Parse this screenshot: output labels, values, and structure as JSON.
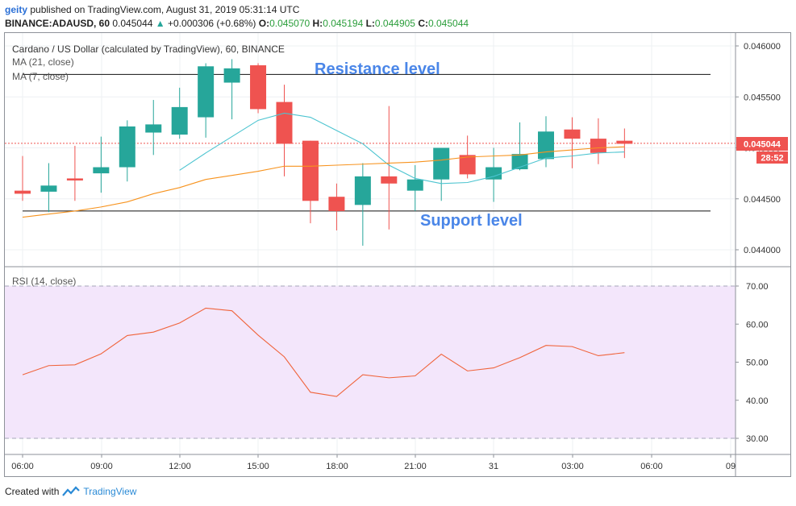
{
  "header": {
    "user": "geity",
    "published_text": "published on TradingView.com, August 31, 2019 05:31:14 UTC",
    "symbol": "BINANCE:ADAUSD, 60",
    "last_price": "0.045044",
    "change": "+0.000306 (+0.68%)",
    "o_label": "O:",
    "o_value": "0.045070",
    "h_label": "H:",
    "h_value": "0.045194",
    "l_label": "L:",
    "l_value": "0.044905",
    "c_label": "C:",
    "c_value": "0.045044"
  },
  "legend": {
    "title": "Cardano / US Dollar (calculated by TradingView), 60, BINANCE",
    "ma21": "MA (21, close)",
    "ma7": "MA (7, close)",
    "rsi": "RSI (14, close)"
  },
  "annotations": {
    "resistance": "Resistance level",
    "support": "Support level"
  },
  "price_tag": "0.045044",
  "countdown": "28:52",
  "footer": {
    "created": "Created with",
    "brand": "TradingView"
  },
  "colors": {
    "up": "#26a69a",
    "down": "#ef5350",
    "ma7": "#4cc4d0",
    "ma21": "#f7931e",
    "rsi": "#f0643c",
    "rsi_band": "#f3e6fb",
    "annotation": "#4a86e8"
  },
  "chart_data": [
    {
      "type": "candlestick",
      "title": "Cardano / US Dollar (calculated by TradingView), 60, BINANCE",
      "x_tick_labels": [
        "06:00",
        "09:00",
        "12:00",
        "15:00",
        "18:00",
        "21:00",
        "31",
        "03:00",
        "06:00",
        "09"
      ],
      "y_tick_labels": [
        "0.046000",
        "0.045500",
        "0.045000",
        "0.044500",
        "0.044000"
      ],
      "ylim": [
        0.04385,
        0.04608
      ],
      "candles": [
        {
          "o": 0.04458,
          "h": 0.04492,
          "l": 0.04448,
          "c": 0.04455
        },
        {
          "o": 0.04457,
          "h": 0.04485,
          "l": 0.04437,
          "c": 0.04463
        },
        {
          "o": 0.0447,
          "h": 0.04502,
          "l": 0.04448,
          "c": 0.04468
        },
        {
          "o": 0.04475,
          "h": 0.04511,
          "l": 0.04456,
          "c": 0.04481
        },
        {
          "o": 0.04481,
          "h": 0.04527,
          "l": 0.04467,
          "c": 0.04521
        },
        {
          "o": 0.04515,
          "h": 0.04547,
          "l": 0.04493,
          "c": 0.04523
        },
        {
          "o": 0.04513,
          "h": 0.04559,
          "l": 0.04509,
          "c": 0.0454
        },
        {
          "o": 0.0453,
          "h": 0.04583,
          "l": 0.0451,
          "c": 0.0458
        },
        {
          "o": 0.04564,
          "h": 0.04587,
          "l": 0.04528,
          "c": 0.04578
        },
        {
          "o": 0.04581,
          "h": 0.04583,
          "l": 0.04534,
          "c": 0.04538
        },
        {
          "o": 0.04545,
          "h": 0.04562,
          "l": 0.04472,
          "c": 0.04504
        },
        {
          "o": 0.04507,
          "h": 0.04507,
          "l": 0.04426,
          "c": 0.04448
        },
        {
          "o": 0.04452,
          "h": 0.04465,
          "l": 0.04419,
          "c": 0.04438
        },
        {
          "o": 0.04444,
          "h": 0.04485,
          "l": 0.04404,
          "c": 0.04472
        },
        {
          "o": 0.04472,
          "h": 0.04541,
          "l": 0.0442,
          "c": 0.04465
        },
        {
          "o": 0.04458,
          "h": 0.04483,
          "l": 0.04438,
          "c": 0.04469
        },
        {
          "o": 0.04469,
          "h": 0.045,
          "l": 0.04448,
          "c": 0.045
        },
        {
          "o": 0.04493,
          "h": 0.04512,
          "l": 0.0447,
          "c": 0.04474
        },
        {
          "o": 0.04469,
          "h": 0.045,
          "l": 0.04447,
          "c": 0.04481
        },
        {
          "o": 0.04479,
          "h": 0.04525,
          "l": 0.04478,
          "c": 0.04494
        },
        {
          "o": 0.04489,
          "h": 0.04531,
          "l": 0.04481,
          "c": 0.04516
        },
        {
          "o": 0.04518,
          "h": 0.0453,
          "l": 0.0448,
          "c": 0.04509
        },
        {
          "o": 0.04509,
          "h": 0.04529,
          "l": 0.04484,
          "c": 0.04495
        },
        {
          "o": 0.04507,
          "h": 0.04519,
          "l": 0.0449,
          "c": 0.04504
        }
      ],
      "series": [
        {
          "name": "MA (7, close)",
          "values": [
            null,
            null,
            null,
            null,
            null,
            null,
            0.04478,
            0.04495,
            0.04511,
            0.04527,
            0.04534,
            0.0453,
            0.04517,
            0.04504,
            0.04483,
            0.0447,
            0.04465,
            0.04466,
            0.04472,
            0.04481,
            0.0449,
            0.04492,
            0.04495,
            0.04496
          ]
        },
        {
          "name": "MA (21, close)",
          "values": [
            0.04432,
            0.04435,
            0.04438,
            0.04442,
            0.04447,
            0.04455,
            0.04461,
            0.04469,
            0.04473,
            0.04477,
            0.04482,
            0.04482,
            0.04483,
            0.04484,
            0.04485,
            0.04486,
            0.04488,
            0.04491,
            0.04492,
            0.04493,
            0.04496,
            0.04498,
            0.045,
            0.04501
          ]
        }
      ],
      "lines": [
        {
          "name": "Resistance level",
          "value": 0.04572
        },
        {
          "name": "Support level",
          "value": 0.04438
        }
      ],
      "last_price": 0.045044
    },
    {
      "type": "line",
      "title": "RSI (14, close)",
      "y_tick_labels": [
        "70.00",
        "60.00",
        "50.00",
        "40.00",
        "30.00"
      ],
      "ylim": [
        27,
        73
      ],
      "band": [
        30,
        70
      ],
      "series": [
        {
          "name": "RSI (14, close)",
          "values": [
            46.7,
            49.1,
            49.3,
            52.2,
            57.0,
            57.9,
            60.3,
            64.2,
            63.5,
            57.1,
            51.4,
            42.1,
            41.0,
            46.7,
            45.9,
            46.4,
            52.1,
            47.7,
            48.5,
            51.2,
            54.4,
            54.1,
            51.7,
            52.5
          ]
        }
      ]
    }
  ]
}
